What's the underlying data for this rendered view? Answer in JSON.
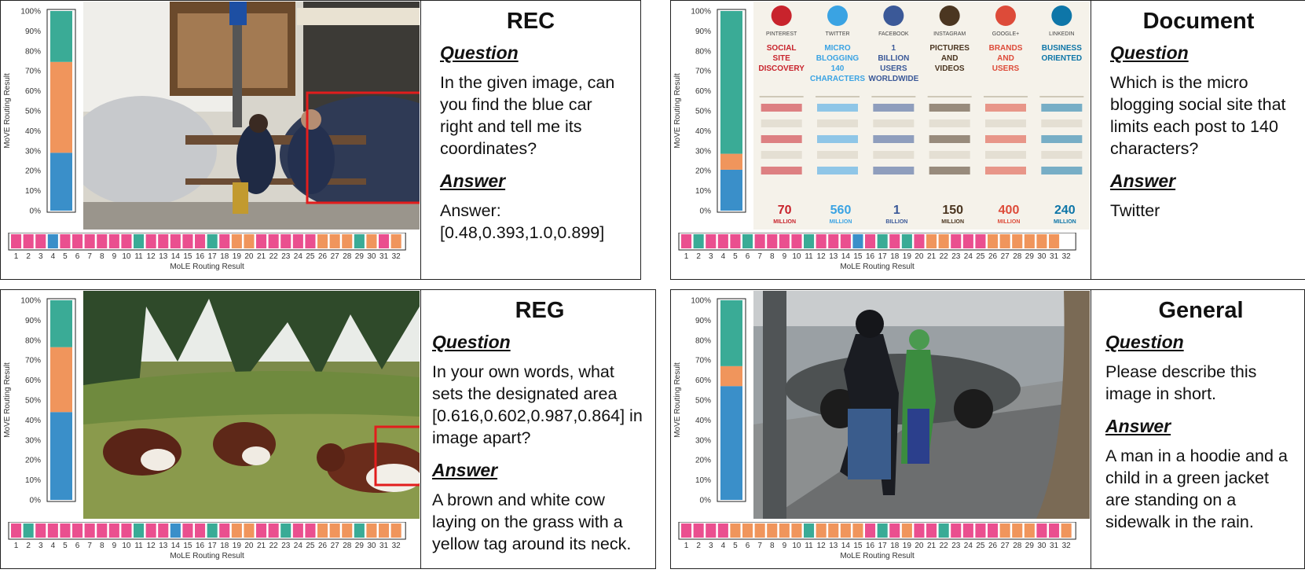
{
  "colors": {
    "blue": "#3a8fc9",
    "orange": "#f0955c",
    "teal": "#3aab96",
    "pink": "#ea4f8f",
    "white": "#ffffff"
  },
  "panels": [
    {
      "id": "rec",
      "title": "REC",
      "question_label": "Question",
      "question": "In the given image, can you find the blue car right and tell me its coordinates?",
      "answer_label": "Answer",
      "answer": "Answer: [0.48,0.393,1.0,0.899]",
      "image_kind": "bench-street"
    },
    {
      "id": "document",
      "title": "Document",
      "question_label": "Question",
      "question": "Which is the micro blogging social site that limits each post to 140 characters?",
      "answer_label": "Answer",
      "answer": "Twitter",
      "image_kind": "social-infographic",
      "infographic": {
        "networks": [
          "PINTEREST",
          "TWITTER",
          "FACEBOOK",
          "INSTAGRAM",
          "GOOGLE+",
          "LINKEDIN"
        ],
        "network_colors": [
          "#c8232c",
          "#3aa3e3",
          "#3b5998",
          "#4b3621",
          "#dd4b39",
          "#0e76a8"
        ],
        "headlines": [
          "SOCIAL SITE DISCOVERY",
          "MICRO BLOGGING 140 CHARACTERS",
          "1 BILLION USERS WORLDWIDE",
          "PICTURES AND VIDEOS",
          "BRANDS AND USERS",
          "BUSINESS ORIENTED"
        ],
        "stats": [
          "70 MILLION",
          "560 MILLION",
          "1 BILLION",
          "150 MILLION",
          "400 MILLION",
          "240 MILLION"
        ]
      }
    },
    {
      "id": "reg",
      "title": "REG",
      "question_label": "Question",
      "question": "In your own words, what sets the designated area [0.616,0.602,0.987,0.864] in image apart?",
      "answer_label": "Answer",
      "answer": "A brown and white cow laying on the grass with a yellow tag around its neck.",
      "image_kind": "cows-field"
    },
    {
      "id": "general",
      "title": "General",
      "question_label": "Question",
      "question": "Please describe this image in short.",
      "answer_label": "Answer",
      "answer": "A man in a hoodie and a child in a green jacket are standing on a sidewalk in the rain.",
      "image_kind": "rain-street"
    }
  ],
  "chart_data": [
    {
      "type": "bar",
      "ylabel": "MoVE Routing Result",
      "ticks": [
        "0%",
        "10%",
        "20%",
        "30%",
        "40%",
        "50%",
        "60%",
        "70%",
        "80%",
        "90%",
        "100%"
      ],
      "ylim": [
        0,
        100
      ],
      "stack_colors": [
        "blue",
        "orange",
        "teal"
      ],
      "values": [
        29,
        45.5,
        25.5
      ]
    },
    {
      "type": "bar",
      "ylabel": "MoVE Routing Result",
      "ticks": [
        "0%",
        "10%",
        "20%",
        "30%",
        "40%",
        "50%",
        "60%",
        "70%",
        "80%",
        "90%",
        "100%"
      ],
      "ylim": [
        0,
        100
      ],
      "stack_colors": [
        "blue",
        "orange",
        "teal"
      ],
      "values": [
        20.5,
        8,
        71.5
      ]
    },
    {
      "type": "bar",
      "ylabel": "MoVE Routing Result",
      "ticks": [
        "0%",
        "10%",
        "20%",
        "30%",
        "40%",
        "50%",
        "60%",
        "70%",
        "80%",
        "90%",
        "100%"
      ],
      "ylim": [
        0,
        100
      ],
      "stack_colors": [
        "blue",
        "orange",
        "teal"
      ],
      "values": [
        44,
        32.5,
        23.5
      ]
    },
    {
      "type": "bar",
      "ylabel": "MoVE Routing Result",
      "ticks": [
        "0%",
        "10%",
        "20%",
        "30%",
        "40%",
        "50%",
        "60%",
        "70%",
        "80%",
        "90%",
        "100%"
      ],
      "ylim": [
        0,
        100
      ],
      "stack_colors": [
        "blue",
        "orange",
        "teal"
      ],
      "values": [
        57,
        10,
        33
      ]
    },
    {
      "type": "heatmap",
      "xlabel": "MoLE Routing Result",
      "categories": [
        "1",
        "2",
        "3",
        "4",
        "5",
        "6",
        "7",
        "8",
        "9",
        "10",
        "11",
        "12",
        "13",
        "14",
        "15",
        "16",
        "17",
        "18",
        "19",
        "20",
        "21",
        "22",
        "23",
        "24",
        "25",
        "26",
        "27",
        "28",
        "29",
        "30",
        "31",
        "32"
      ],
      "values": [
        "pink",
        "pink",
        "pink",
        "blue",
        "pink",
        "pink",
        "pink",
        "pink",
        "pink",
        "pink",
        "teal",
        "pink",
        "pink",
        "pink",
        "pink",
        "pink",
        "teal",
        "pink",
        "orange",
        "orange",
        "pink",
        "pink",
        "pink",
        "pink",
        "pink",
        "orange",
        "orange",
        "orange",
        "teal",
        "orange",
        "pink",
        "orange"
      ]
    },
    {
      "type": "heatmap",
      "xlabel": "MoLE Routing Result",
      "categories": [
        "1",
        "2",
        "3",
        "4",
        "5",
        "6",
        "7",
        "8",
        "9",
        "10",
        "11",
        "12",
        "13",
        "14",
        "15",
        "16",
        "17",
        "18",
        "19",
        "20",
        "21",
        "22",
        "23",
        "24",
        "25",
        "26",
        "27",
        "28",
        "29",
        "30",
        "31",
        "32"
      ],
      "values": [
        "pink",
        "teal",
        "pink",
        "pink",
        "pink",
        "teal",
        "pink",
        "pink",
        "pink",
        "pink",
        "teal",
        "pink",
        "pink",
        "pink",
        "blue",
        "pink",
        "teal",
        "pink",
        "teal",
        "pink",
        "orange",
        "orange",
        "pink",
        "pink",
        "pink",
        "orange",
        "orange",
        "orange",
        "orange",
        "orange",
        "orange",
        "white"
      ]
    },
    {
      "type": "heatmap",
      "xlabel": "MoLE Routing Result",
      "categories": [
        "1",
        "2",
        "3",
        "4",
        "5",
        "6",
        "7",
        "8",
        "9",
        "10",
        "11",
        "12",
        "13",
        "14",
        "15",
        "16",
        "17",
        "18",
        "19",
        "20",
        "21",
        "22",
        "23",
        "24",
        "25",
        "26",
        "27",
        "28",
        "29",
        "30",
        "31",
        "32"
      ],
      "values": [
        "pink",
        "teal",
        "pink",
        "pink",
        "pink",
        "pink",
        "pink",
        "pink",
        "pink",
        "pink",
        "teal",
        "pink",
        "pink",
        "blue",
        "pink",
        "pink",
        "teal",
        "pink",
        "orange",
        "orange",
        "pink",
        "pink",
        "teal",
        "pink",
        "pink",
        "orange",
        "orange",
        "orange",
        "teal",
        "orange",
        "orange",
        "orange"
      ]
    },
    {
      "type": "heatmap",
      "xlabel": "MoLE Routing Result",
      "categories": [
        "1",
        "2",
        "3",
        "4",
        "5",
        "6",
        "7",
        "8",
        "9",
        "10",
        "11",
        "12",
        "13",
        "14",
        "15",
        "16",
        "17",
        "18",
        "19",
        "20",
        "21",
        "22",
        "23",
        "24",
        "25",
        "26",
        "27",
        "28",
        "29",
        "30",
        "31",
        "32"
      ],
      "values": [
        "pink",
        "pink",
        "pink",
        "pink",
        "orange",
        "orange",
        "orange",
        "orange",
        "orange",
        "orange",
        "teal",
        "orange",
        "orange",
        "orange",
        "orange",
        "pink",
        "teal",
        "pink",
        "orange",
        "pink",
        "pink",
        "teal",
        "pink",
        "pink",
        "pink",
        "pink",
        "orange",
        "orange",
        "orange",
        "pink",
        "pink",
        "orange"
      ]
    }
  ]
}
